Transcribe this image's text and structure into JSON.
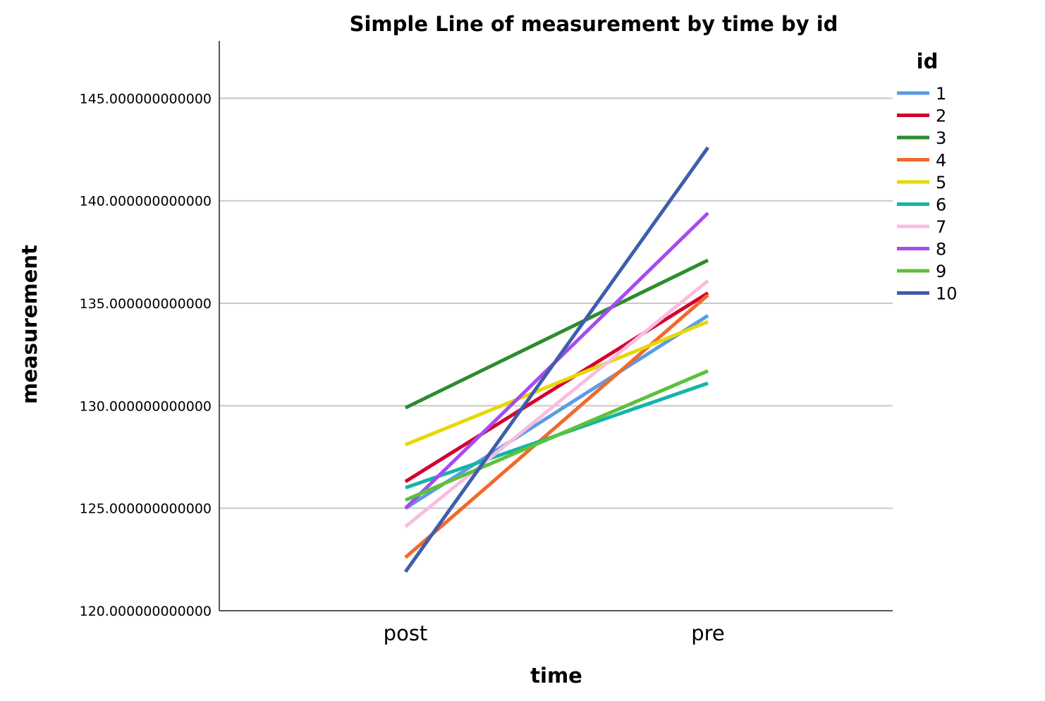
{
  "chart_data": {
    "type": "line",
    "title": "Simple Line of measurement by time by id",
    "xlabel": "time",
    "ylabel": "measurement",
    "categories": [
      "post",
      "pre"
    ],
    "ylim": [
      120,
      147.8
    ],
    "yticks": [
      120,
      125,
      130,
      135,
      140,
      145
    ],
    "ytick_labels": [
      "120.000000000000",
      "125.000000000000",
      "130.000000000000",
      "135.000000000000",
      "140.000000000000",
      "145.000000000000"
    ],
    "grid": true,
    "legend": {
      "title": "id",
      "placement": "top-right"
    },
    "series": [
      {
        "name": "1",
        "color": "#5b9be6",
        "values": [
          125.0,
          134.4
        ]
      },
      {
        "name": "2",
        "color": "#d6002e",
        "values": [
          126.3,
          135.5
        ]
      },
      {
        "name": "3",
        "color": "#2e8b2e",
        "values": [
          129.9,
          137.1
        ]
      },
      {
        "name": "4",
        "color": "#f06a2c",
        "values": [
          122.6,
          135.4
        ]
      },
      {
        "name": "5",
        "color": "#e6d800",
        "values": [
          128.1,
          134.1
        ]
      },
      {
        "name": "6",
        "color": "#12b5a6",
        "values": [
          126.0,
          131.1
        ]
      },
      {
        "name": "7",
        "color": "#f9bde0",
        "values": [
          124.1,
          136.1
        ]
      },
      {
        "name": "8",
        "color": "#a64bf0",
        "values": [
          125.0,
          139.4
        ]
      },
      {
        "name": "9",
        "color": "#5cc13a",
        "values": [
          125.4,
          131.7
        ]
      },
      {
        "name": "10",
        "color": "#3f5dab",
        "values": [
          121.9,
          142.6
        ]
      }
    ]
  }
}
